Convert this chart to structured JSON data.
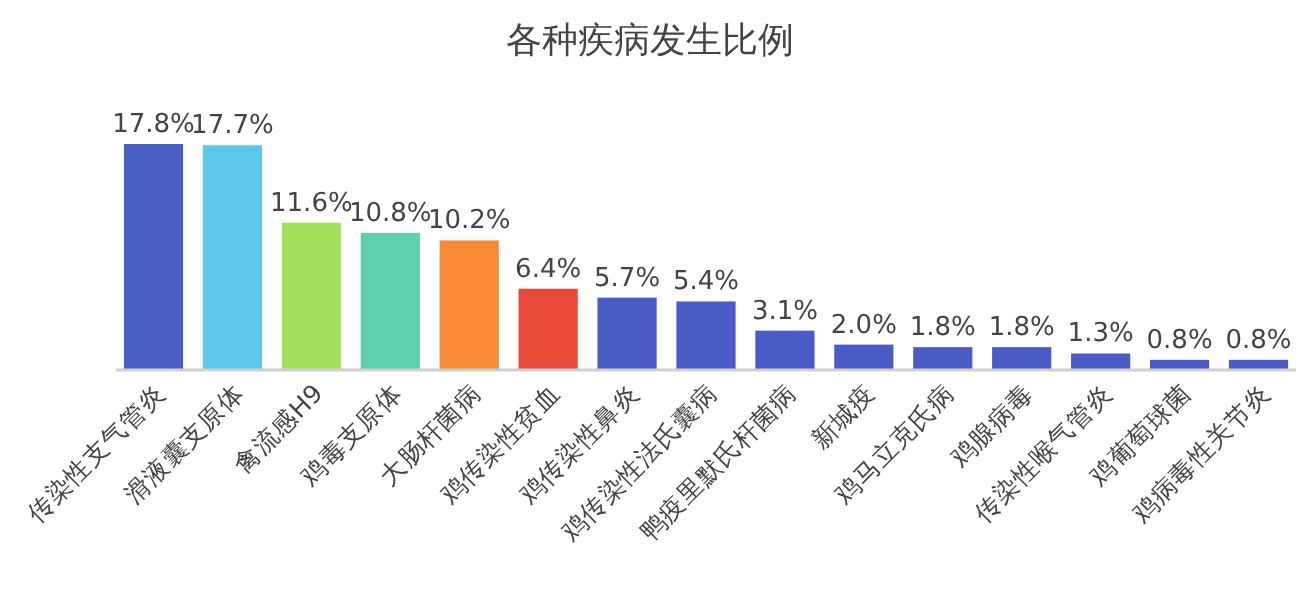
{
  "chart_data": {
    "type": "bar",
    "title": "各种疾病发生比例",
    "categories": [
      "传染性支气管炎",
      "滑液囊支原体",
      "禽流感H9",
      "鸡毒支原体",
      "大肠杆菌病",
      "鸡传染性贫血",
      "鸡传染性鼻炎",
      "鸡传染性法氏囊病",
      "鸭疫里默氏杆菌病",
      "新城疫",
      "鸡马立克氏病",
      "鸡腺病毒",
      "传染性喉气管炎",
      "鸡葡萄球菌",
      "鸡病毒性关节炎"
    ],
    "values": [
      17.8,
      17.7,
      11.6,
      10.8,
      10.2,
      6.4,
      5.7,
      5.4,
      3.1,
      2.0,
      1.8,
      1.8,
      1.3,
      0.8,
      0.8
    ],
    "value_labels": [
      "17.8%",
      "17.7%",
      "11.6%",
      "10.8%",
      "10.2%",
      "6.4%",
      "5.7%",
      "5.4%",
      "3.1%",
      "2.0%",
      "1.8%",
      "1.8%",
      "1.3%",
      "0.8%",
      "0.8%"
    ],
    "colors": [
      "#4a5fc4",
      "#5bc8ec",
      "#a3e05a",
      "#5fcfae",
      "#f98a38",
      "#e84a3a",
      "#4a5bc8",
      "#4a5bc8",
      "#4a5bc8",
      "#4a5bc8",
      "#4a5bc8",
      "#4a5bc8",
      "#4a5bc8",
      "#4a5bc8",
      "#4a5bc8"
    ]
  }
}
